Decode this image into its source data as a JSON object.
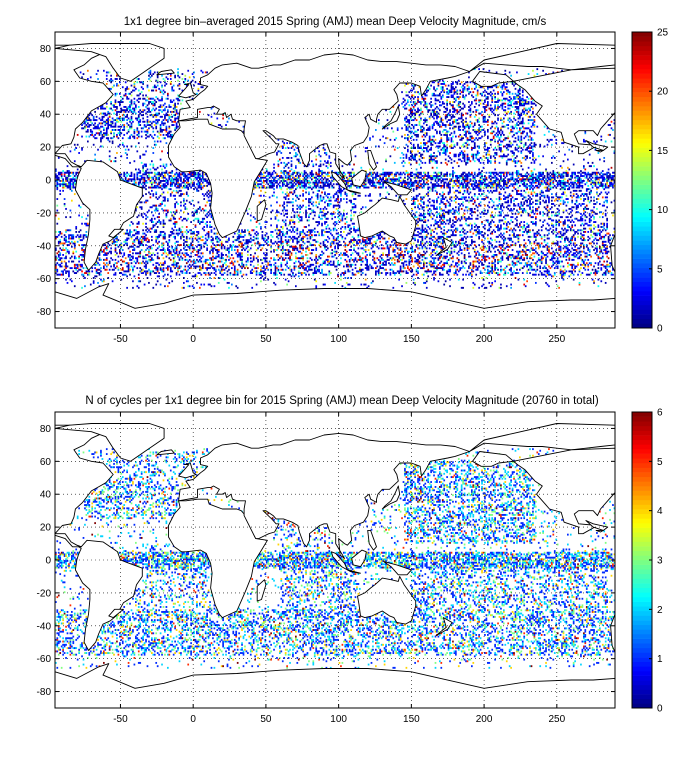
{
  "chart_data": [
    {
      "type": "heatmap",
      "title": "1x1 degree bin–averaged 2015 Spring (AMJ) mean Deep Velocity Magnitude, cm/s",
      "xlabel": "",
      "ylabel": "",
      "xlim": [
        -95,
        290
      ],
      "ylim": [
        -90,
        90
      ],
      "x_ticks": [
        -50,
        0,
        50,
        100,
        150,
        200,
        250
      ],
      "y_ticks": [
        80,
        60,
        40,
        20,
        0,
        -20,
        -40,
        -60,
        -80
      ],
      "grid": "dotted",
      "colorbar": {
        "min": 0,
        "max": 25,
        "ticks": [
          0,
          5,
          10,
          15,
          20,
          25
        ],
        "colormap": "jet"
      },
      "seed": 17,
      "dist": "velocity"
    },
    {
      "type": "heatmap",
      "title": "N of cycles per 1x1 degree bin for 2015 Spring (AMJ) mean Deep Velocity Magnitude (20760 in total)",
      "xlabel": "",
      "ylabel": "",
      "xlim": [
        -95,
        290
      ],
      "ylim": [
        -90,
        90
      ],
      "x_ticks": [
        -50,
        0,
        50,
        100,
        150,
        200,
        250
      ],
      "y_ticks": [
        80,
        60,
        40,
        20,
        0,
        -20,
        -40,
        -60,
        -80
      ],
      "grid": "dotted",
      "colorbar": {
        "min": 0,
        "max": 6,
        "ticks": [
          0,
          1,
          2,
          3,
          4,
          5,
          6
        ],
        "colormap": "jet"
      },
      "seed": 23,
      "dist": "count"
    }
  ]
}
